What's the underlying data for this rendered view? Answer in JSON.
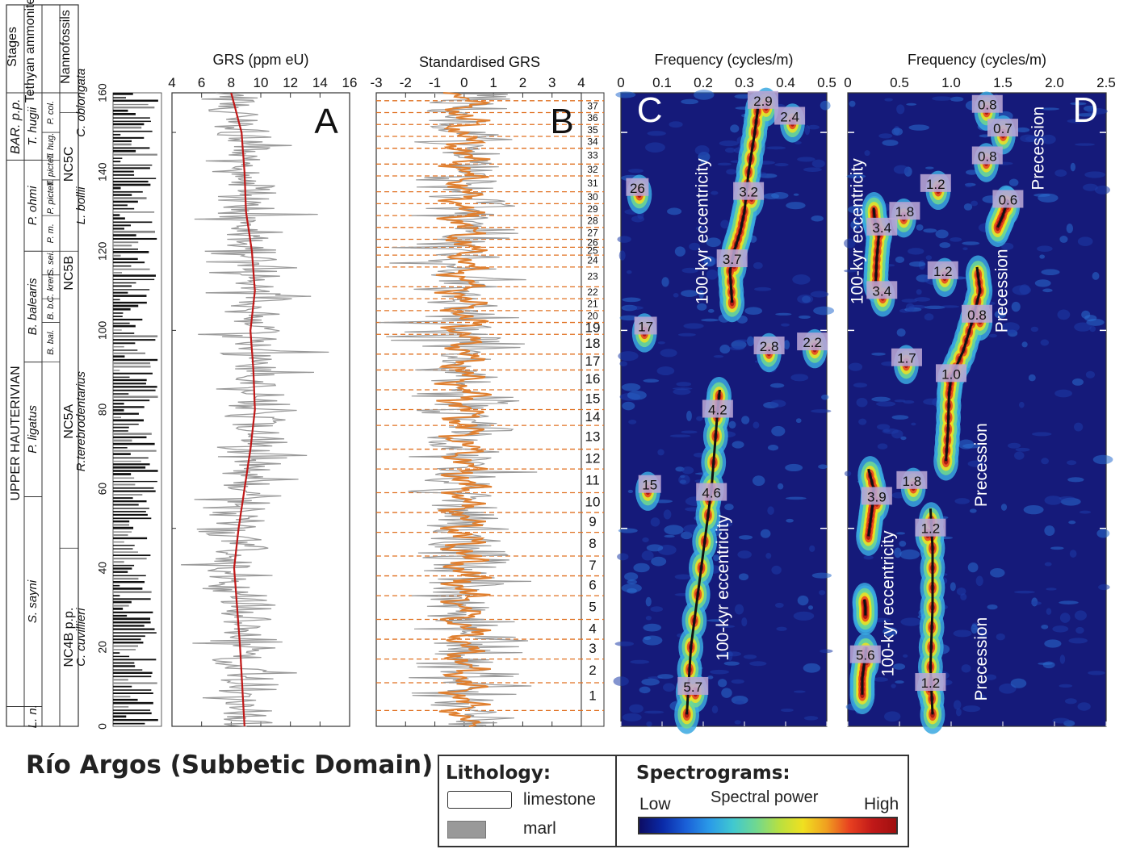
{
  "figure": {
    "site_title": "Río Argos (Subbetic Domain)"
  },
  "strat_columns": {
    "headers": [
      "Stages",
      "Tethyan ammonites",
      "Nannofossils"
    ],
    "stages": [
      {
        "label": "BAR. p.p.",
        "top_m": 160,
        "bottom_m": 143
      },
      {
        "label": "UPPER HAUTERIVIAN",
        "top_m": 143,
        "bottom_m": 5
      }
    ],
    "ammonite_zones": [
      {
        "label": "T. hugii",
        "top_m": 160,
        "bottom_m": 143
      },
      {
        "label": "P. ohmi",
        "top_m": 143,
        "bottom_m": 120
      },
      {
        "label": "B. balearis",
        "top_m": 120,
        "bottom_m": 92
      },
      {
        "label": "P. ligatus",
        "top_m": 92,
        "bottom_m": 58
      },
      {
        "label": "S. sayni",
        "top_m": 58,
        "bottom_m": 5
      },
      {
        "label": "L. n.",
        "top_m": 5,
        "bottom_m": 0
      }
    ],
    "ammonite_subzones": [
      {
        "label": "P. col.",
        "top_m": 160,
        "bottom_m": 150
      },
      {
        "label": "T. hug.",
        "top_m": 150,
        "bottom_m": 143
      },
      {
        "label": "T. picteti",
        "top_m": 143,
        "bottom_m": 138
      },
      {
        "label": "P. picteti",
        "top_m": 138,
        "bottom_m": 129
      },
      {
        "label": "P. m.",
        "top_m": 129,
        "bottom_m": 120
      },
      {
        "label": "S. sei.",
        "top_m": 120,
        "bottom_m": 114
      },
      {
        "label": "C. kren.",
        "top_m": 114,
        "bottom_m": 108
      },
      {
        "label": "B. b.",
        "top_m": 108,
        "bottom_m": 102
      },
      {
        "label": "B. bal.",
        "top_m": 102,
        "bottom_m": 92
      }
    ],
    "nanno_zones": [
      {
        "label": "C. oblongata",
        "top_m": 160,
        "bottom_m": 155
      },
      {
        "label": "NC5C",
        "top_m": 155,
        "bottom_m": 129
      },
      {
        "label": "L. bollii",
        "top_m": 143,
        "bottom_m": 120
      },
      {
        "label": "NC5B",
        "top_m": 120,
        "bottom_m": 109
      },
      {
        "label": "R.terebrodentarius",
        "top_m": 109,
        "bottom_m": 45
      },
      {
        "label": "NC5A",
        "top_m": 109,
        "bottom_m": 45
      },
      {
        "label": "C. cuvillieri",
        "top_m": 45,
        "bottom_m": 0
      },
      {
        "label": "NC4B p.p.",
        "top_m": 45,
        "bottom_m": 0
      }
    ],
    "depth_ticks": [
      "0",
      "20",
      "40",
      "60",
      "80",
      "100",
      "120",
      "140",
      "160"
    ]
  },
  "chart_data": [
    {
      "panel": "A",
      "type": "line",
      "title": "GRS (ppm eU)",
      "xlim": [
        4,
        16
      ],
      "ylim": [
        0,
        160
      ],
      "x_ticks": [
        "4",
        "6",
        "8",
        "10",
        "12",
        "14",
        "16"
      ],
      "series": [
        {
          "kind": "raw GRS",
          "color": "#9a9a9a"
        },
        {
          "kind": "smoothed trend",
          "color": "#c01818",
          "y": [
            0,
            20,
            40,
            50,
            60,
            70,
            80,
            90,
            100,
            110,
            120,
            130,
            140,
            150,
            160
          ],
          "x": [
            8.9,
            8.6,
            8.2,
            8.5,
            8.9,
            9.3,
            9.6,
            9.5,
            9.3,
            9.6,
            9.4,
            9.0,
            8.9,
            8.7,
            8.0
          ]
        }
      ]
    },
    {
      "panel": "B",
      "type": "line",
      "title": "Standardised GRS",
      "xlim": [
        -3,
        4
      ],
      "ylim": [
        0,
        160
      ],
      "x_ticks": [
        "-3",
        "-2",
        "-1",
        "0",
        "1",
        "2",
        "3",
        "4"
      ],
      "cycle_labels": [
        "1",
        "2",
        "3",
        "4",
        "5",
        "6",
        "7",
        "8",
        "9",
        "10",
        "11",
        "12",
        "13",
        "14",
        "15",
        "16",
        "17",
        "18",
        "19",
        "20",
        "21",
        "22",
        "23",
        "24",
        "25",
        "26",
        "27",
        "28",
        "29",
        "30",
        "31",
        "32",
        "33",
        "34",
        "35",
        "36",
        "37"
      ],
      "cycle_boundaries_m": [
        4,
        11,
        17,
        22,
        27,
        33,
        38,
        43,
        49,
        54,
        59,
        65,
        70,
        76,
        80,
        85,
        90,
        94,
        99,
        102,
        105,
        108,
        111,
        116,
        119,
        121,
        123,
        126,
        129,
        132,
        135,
        139,
        142,
        146,
        149,
        152,
        155,
        158
      ],
      "series": [
        {
          "kind": "standardised GRS",
          "color": "#9a9a9a"
        },
        {
          "kind": "filtered (orbital band)",
          "color": "#e08030"
        }
      ]
    },
    {
      "panel": "C",
      "type": "heatmap",
      "title": "Frequency (cycles/m)",
      "xlim": [
        0,
        0.5
      ],
      "ylim": [
        0,
        160
      ],
      "x_ticks": [
        "0",
        "0.1",
        "0.2",
        "0.3",
        "0.4",
        "0.5"
      ],
      "ridges": [
        {
          "y": [
            3,
            20,
            40,
            60,
            80,
            85
          ],
          "x": [
            0.16,
            0.17,
            0.195,
            0.22,
            0.235,
            0.24
          ]
        },
        {
          "y": [
            107,
            115,
            120,
            125,
            130,
            140,
            150,
            158
          ],
          "x": [
            0.27,
            0.265,
            0.275,
            0.29,
            0.3,
            0.31,
            0.325,
            0.335
          ]
        }
      ],
      "annotations": [
        {
          "text": "2.9",
          "x": 0.345,
          "y": 158
        },
        {
          "text": "2.4",
          "x": 0.41,
          "y": 154
        },
        {
          "text": "26",
          "x": 0.04,
          "y": 136
        },
        {
          "text": "3.2",
          "x": 0.31,
          "y": 135
        },
        {
          "text": "3.7",
          "x": 0.27,
          "y": 118
        },
        {
          "text": "17",
          "x": 0.06,
          "y": 101
        },
        {
          "text": "2.8",
          "x": 0.36,
          "y": 96
        },
        {
          "text": "2.2",
          "x": 0.465,
          "y": 97
        },
        {
          "text": "4.2",
          "x": 0.235,
          "y": 80
        },
        {
          "text": "15",
          "x": 0.07,
          "y": 61
        },
        {
          "text": "4.6",
          "x": 0.22,
          "y": 59
        },
        {
          "text": "5.7",
          "x": 0.175,
          "y": 10
        }
      ],
      "text_labels": [
        {
          "text": "100-kyr eccentricity",
          "x": 0.2,
          "y": 125
        },
        {
          "text": "100-kyr eccentricity",
          "x": 0.25,
          "y": 35
        },
        {
          "text": "C",
          "x": 0.07,
          "y": 155
        }
      ]
    },
    {
      "panel": "D",
      "type": "heatmap",
      "title": "Frequency (cycles/m)",
      "xlim": [
        0,
        2.5
      ],
      "ylim": [
        0,
        160
      ],
      "x_ticks": [
        "0",
        "0.5",
        "1.0",
        "1.5",
        "2.0",
        "2.5"
      ],
      "ridges": [
        {
          "y": [
            112,
            118,
            124,
            128,
            131
          ],
          "x": [
            0.27,
            0.28,
            0.3,
            0.26,
            0.25
          ]
        },
        {
          "y": [
            48,
            52,
            56,
            60,
            65
          ],
          "x": [
            0.2,
            0.22,
            0.24,
            0.25,
            0.2
          ]
        },
        {
          "y": [
            28,
            30,
            32
          ],
          "x": [
            0.17,
            0.17,
            0.16
          ]
        },
        {
          "y": [
            8,
            12,
            16,
            20
          ],
          "x": [
            0.14,
            0.14,
            0.16,
            0.18
          ]
        },
        {
          "y": [
            3,
            15,
            30,
            45,
            55
          ],
          "x": [
            0.82,
            0.8,
            0.82,
            0.82,
            0.8
          ]
        },
        {
          "y": [
            67,
            75,
            84,
            88
          ],
          "x": [
            0.95,
            0.97,
            0.98,
            1.0
          ]
        },
        {
          "y": [
            88,
            95,
            102,
            110,
            116
          ],
          "x": [
            1.0,
            1.12,
            1.2,
            1.28,
            1.25
          ]
        },
        {
          "y": [
            126,
            129,
            133
          ],
          "x": [
            1.45,
            1.5,
            1.55
          ]
        }
      ],
      "annotations": [
        {
          "text": "0.8",
          "x": 1.35,
          "y": 157
        },
        {
          "text": "0.7",
          "x": 1.5,
          "y": 151
        },
        {
          "text": "0.8",
          "x": 1.35,
          "y": 144
        },
        {
          "text": "1.2",
          "x": 0.85,
          "y": 137
        },
        {
          "text": "0.6",
          "x": 1.55,
          "y": 133
        },
        {
          "text": "1.8",
          "x": 0.55,
          "y": 130
        },
        {
          "text": "3.4",
          "x": 0.33,
          "y": 126
        },
        {
          "text": "1.2",
          "x": 0.92,
          "y": 115
        },
        {
          "text": "3.4",
          "x": 0.33,
          "y": 110
        },
        {
          "text": "0.8",
          "x": 1.25,
          "y": 104
        },
        {
          "text": "1.7",
          "x": 0.57,
          "y": 93
        },
        {
          "text": "1.0",
          "x": 1.0,
          "y": 89
        },
        {
          "text": "1.8",
          "x": 0.62,
          "y": 62
        },
        {
          "text": "3.9",
          "x": 0.28,
          "y": 58
        },
        {
          "text": "1.2",
          "x": 0.8,
          "y": 50
        },
        {
          "text": "5.6",
          "x": 0.17,
          "y": 18
        },
        {
          "text": "1.2",
          "x": 0.8,
          "y": 11
        }
      ],
      "text_labels": [
        {
          "text": "100-kyr eccentricity",
          "x": 0.1,
          "y": 125
        },
        {
          "text": "100-kyr eccentricity",
          "x": 0.4,
          "y": 31
        },
        {
          "text": "Precession",
          "x": 1.85,
          "y": 146
        },
        {
          "text": "Precession",
          "x": 1.5,
          "y": 110
        },
        {
          "text": "Precession",
          "x": 1.3,
          "y": 66
        },
        {
          "text": "Precession",
          "x": 1.3,
          "y": 17
        },
        {
          "text": "D",
          "x": 2.3,
          "y": 155
        }
      ]
    }
  ],
  "legend": {
    "lithology_title": "Lithology:",
    "limestone": "limestone",
    "marl": "marl",
    "spectrogram_title": "Spectrograms:",
    "low": "Low",
    "power": "Spectral power",
    "high": "High",
    "colors": [
      "#0c0c64",
      "#1a60d8",
      "#40c8d0",
      "#b8e040",
      "#f0e020",
      "#e84020",
      "#a01010"
    ]
  },
  "panel_letters": {
    "a": "A",
    "b": "B",
    "c": "C",
    "d": "D"
  }
}
